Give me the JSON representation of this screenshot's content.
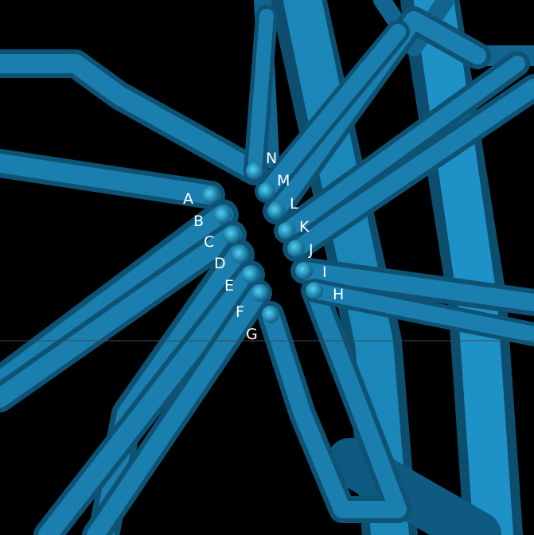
{
  "scene": {
    "background": "#000000",
    "tube_color": "#1a7fae",
    "tube_highlight": "#3cc0ea",
    "tube_shadow": "#0b4566",
    "tip_color": "#1f9dcf"
  },
  "labels": [
    "A",
    "B",
    "C",
    "D",
    "E",
    "F",
    "G",
    "H",
    "I",
    "J",
    "K",
    "L",
    "M",
    "N"
  ]
}
